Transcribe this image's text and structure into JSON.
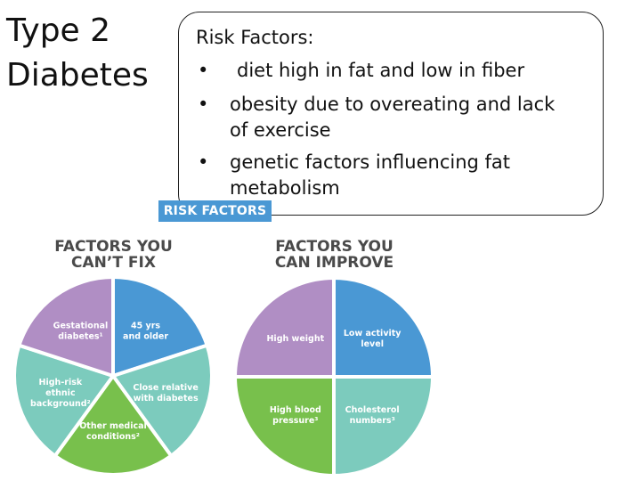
{
  "title_lines": [
    "Type 2",
    "Diabetes"
  ],
  "risk": {
    "heading": "Risk Factors:",
    "bullets": [
      {
        "marker": "•",
        "text": "diet high in fat and low in fiber"
      },
      {
        "marker": "•",
        "text": "obesity due to overeating and lack of exercise"
      },
      {
        "marker": "•",
        "text": "genetic factors influencing fat metabolism"
      }
    ]
  },
  "graphic": {
    "banner": "RISK FACTORS",
    "left_heading": [
      "FACTORS YOU",
      "CAN’T FIX"
    ],
    "right_heading": [
      "FACTORS YOU",
      "CAN IMPROVE"
    ]
  },
  "colors": {
    "blue": "#4a98d4",
    "teal": "#7ccbbd",
    "green": "#78c04c",
    "purple": "#b08ec4"
  },
  "chart_data": [
    {
      "type": "pie",
      "title": "FACTORS YOU CAN’T FIX",
      "slices": [
        {
          "label": [
            "45 yrs",
            "and older"
          ],
          "value": 1,
          "color": "#4a98d4"
        },
        {
          "label": [
            "Close relative",
            "with diabetes"
          ],
          "value": 1,
          "color": "#7ccbbd"
        },
        {
          "label": [
            "Other medical",
            "conditions²"
          ],
          "value": 1,
          "color": "#78c04c"
        },
        {
          "label": [
            "High-risk",
            "ethnic",
            "background²"
          ],
          "value": 1,
          "color": "#7ccbbd"
        },
        {
          "label": [
            "Gestational",
            "diabetes¹"
          ],
          "value": 1,
          "color": "#b08ec4"
        }
      ]
    },
    {
      "type": "pie",
      "title": "FACTORS YOU CAN IMPROVE",
      "slices": [
        {
          "label": [
            "Low activity",
            "level"
          ],
          "value": 1,
          "color": "#4a98d4"
        },
        {
          "label": [
            "Cholesterol",
            "numbers³"
          ],
          "value": 1,
          "color": "#7ccbbd"
        },
        {
          "label": [
            "High blood",
            "pressure³"
          ],
          "value": 1,
          "color": "#78c04c"
        },
        {
          "label": [
            "High weight"
          ],
          "value": 1,
          "color": "#b08ec4"
        }
      ]
    }
  ]
}
